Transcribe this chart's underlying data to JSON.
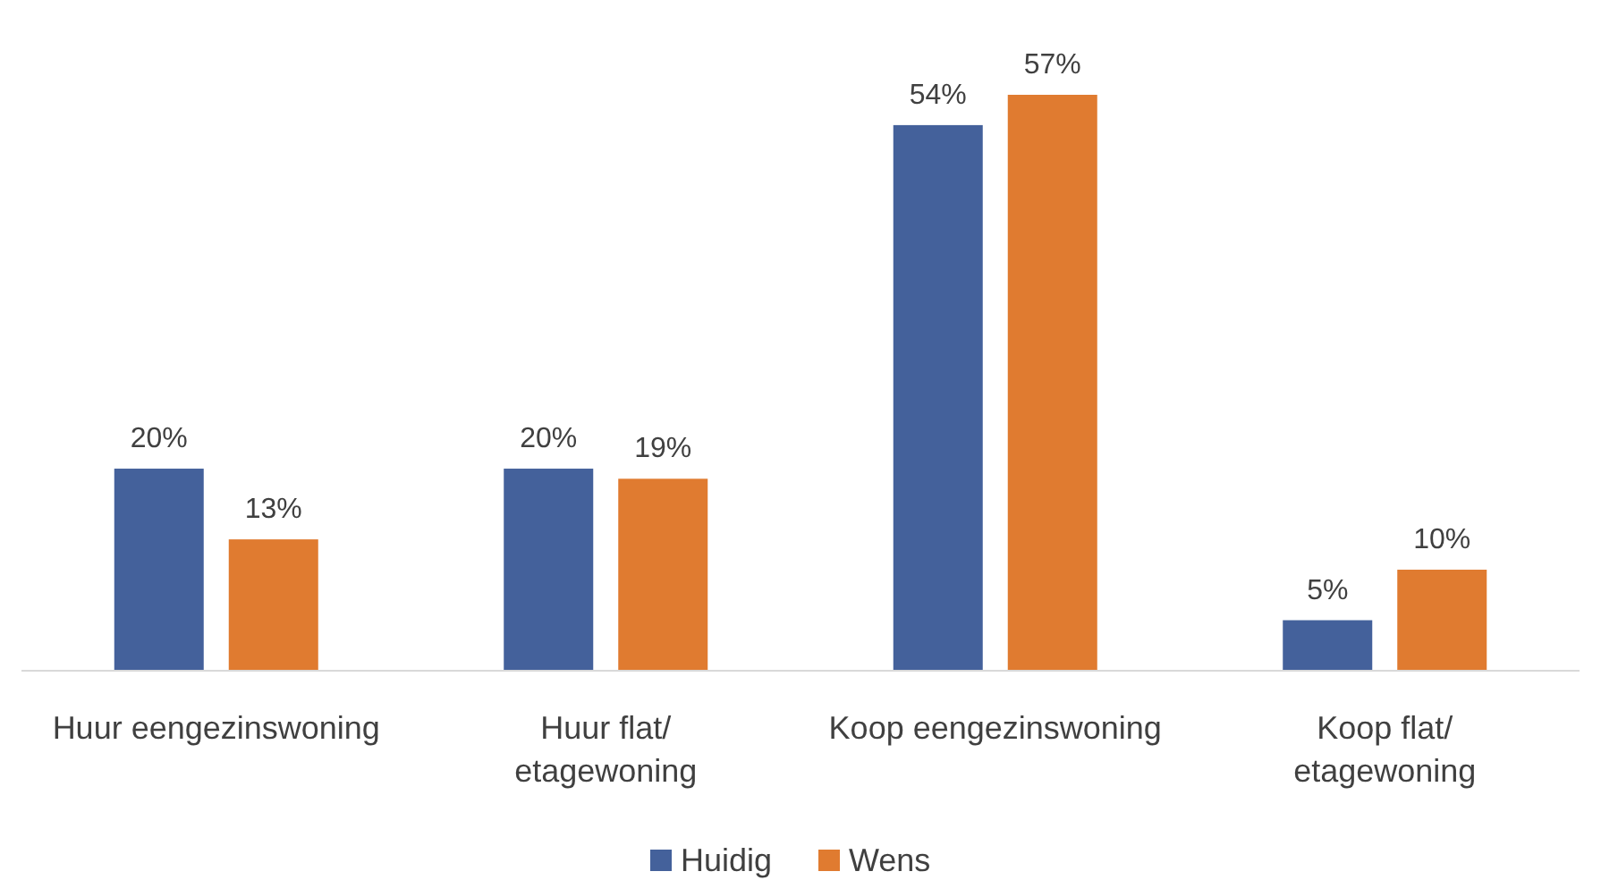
{
  "chart_data": {
    "type": "bar",
    "categories": [
      "Huur eengezinswoning",
      "Huur flat/\netagewoning",
      "Koop eengezinswoning",
      "Koop flat/\netagewoning"
    ],
    "series": [
      {
        "name": "Huidig",
        "color": "#44619b",
        "values": [
          20,
          20,
          54,
          5
        ],
        "value_labels": [
          "20%",
          "20%",
          "54%",
          "5%"
        ]
      },
      {
        "name": "Wens",
        "color": "#e07b30",
        "values": [
          13,
          19,
          57,
          10
        ],
        "value_labels": [
          "13%",
          "19%",
          "57%",
          "10%"
        ]
      }
    ],
    "legend": "bottom"
  }
}
